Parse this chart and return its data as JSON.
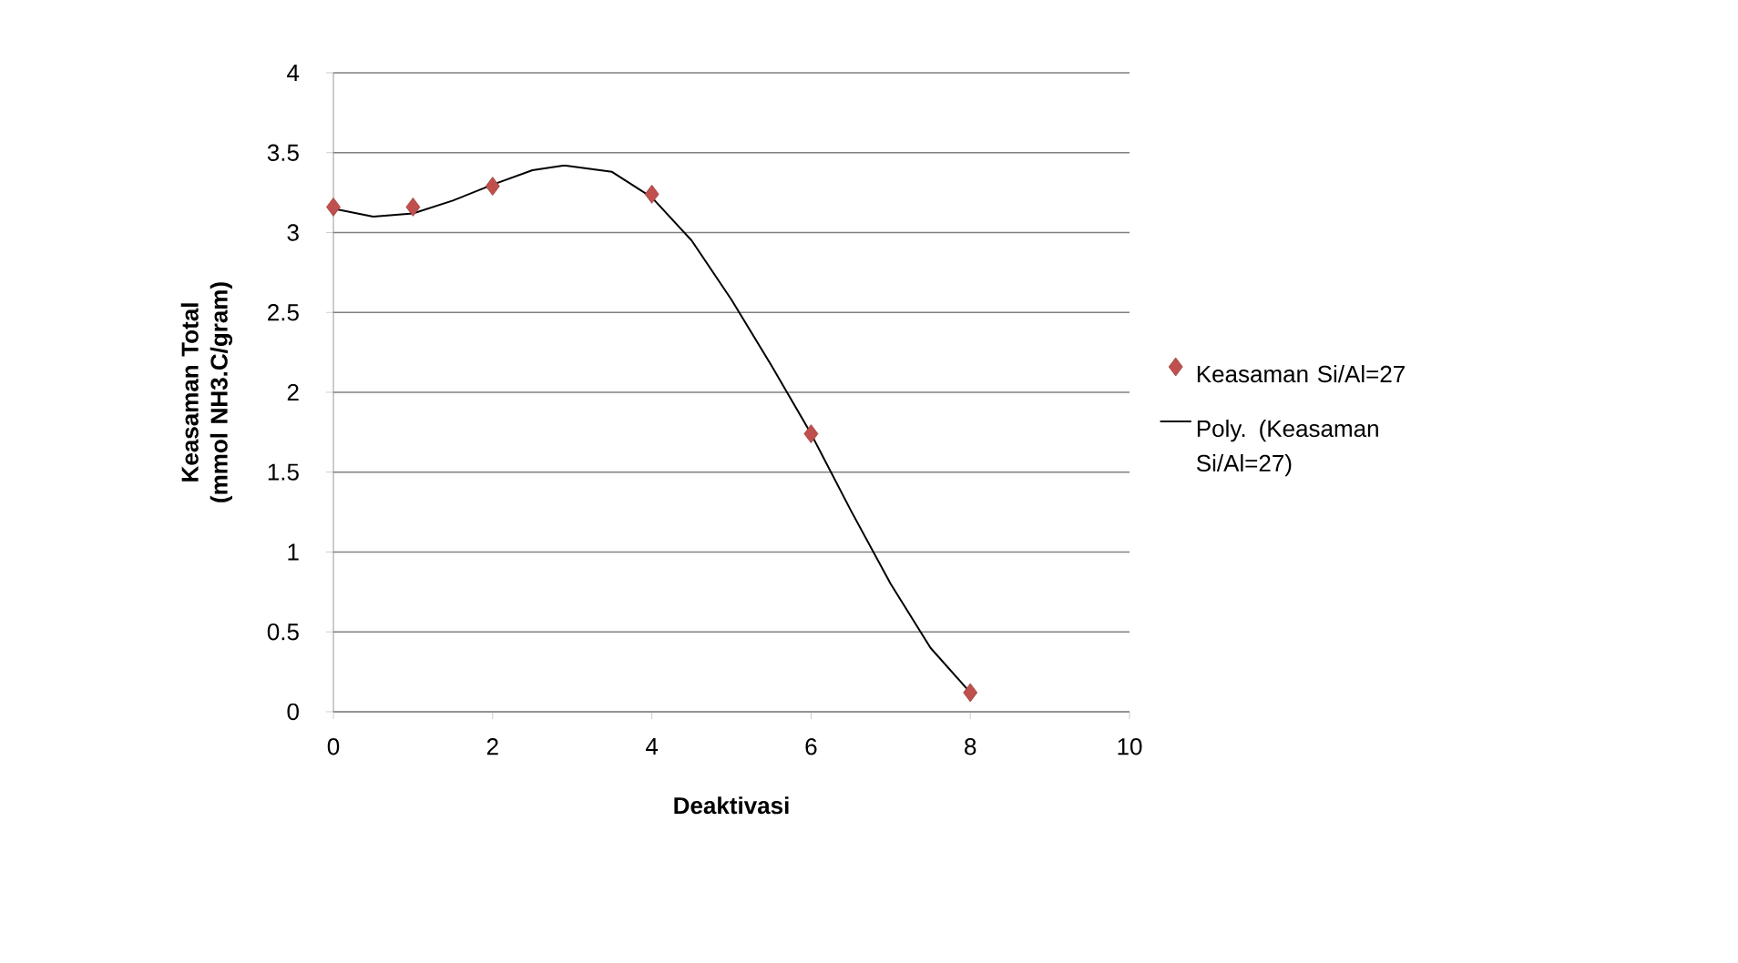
{
  "chart_data": {
    "type": "scatter",
    "xlabel": "Deaktivasi",
    "ylabel": "Keasaman Total (mmol NH3.C/gram)",
    "series": [
      {
        "name": "Keasaman Si/Al=27",
        "color": "#c0504d",
        "marker": "diamond",
        "x": [
          0,
          1,
          2,
          4,
          6,
          8
        ],
        "values": [
          3.16,
          3.16,
          3.29,
          3.24,
          1.74,
          0.12
        ]
      },
      {
        "name": "Poly. (Keasaman Si/Al=27)",
        "type": "line",
        "color": "#000000",
        "marker": "none",
        "x": [
          0,
          0.5,
          1,
          1.5,
          2,
          2.5,
          2.9,
          3.5,
          4,
          4.5,
          5,
          5.5,
          6,
          6.5,
          7,
          7.5,
          8
        ],
        "values": [
          3.15,
          3.1,
          3.12,
          3.2,
          3.3,
          3.39,
          3.42,
          3.38,
          3.22,
          2.95,
          2.58,
          2.17,
          1.74,
          1.26,
          0.8,
          0.4,
          0.12
        ]
      }
    ],
    "xlim": [
      0,
      10
    ],
    "xticks": [
      0,
      2,
      4,
      6,
      8,
      10
    ],
    "ylim": [
      0,
      4
    ],
    "yticks": [
      0,
      0.5,
      1,
      1.5,
      2,
      2.5,
      3,
      3.5,
      4
    ],
    "grid": "y",
    "legend": "right"
  }
}
